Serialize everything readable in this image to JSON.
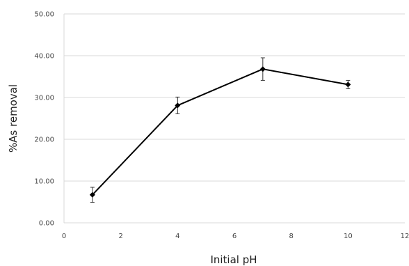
{
  "chart_data": {
    "type": "line",
    "title": "",
    "xlabel": "Initial pH",
    "ylabel": "%As removal",
    "xlim": [
      0,
      12
    ],
    "ylim": [
      0,
      50
    ],
    "x_ticks": [
      "0",
      "2",
      "4",
      "6",
      "8",
      "10",
      "12"
    ],
    "x_tick_values": [
      0,
      2,
      4,
      6,
      8,
      10,
      12
    ],
    "y_ticks": [
      "0.00",
      "10.00",
      "20.00",
      "30.00",
      "40.00",
      "50.00"
    ],
    "y_tick_values": [
      0,
      10,
      20,
      30,
      40,
      50
    ],
    "grid": "horizontal",
    "legend": "none",
    "series": [
      {
        "x": [
          1,
          4,
          7,
          10
        ],
        "values": [
          6.7,
          28.1,
          36.8,
          33.1
        ],
        "error": [
          1.8,
          2.0,
          2.7,
          1.0
        ],
        "color": "#000000",
        "marker": "diamond"
      }
    ]
  }
}
